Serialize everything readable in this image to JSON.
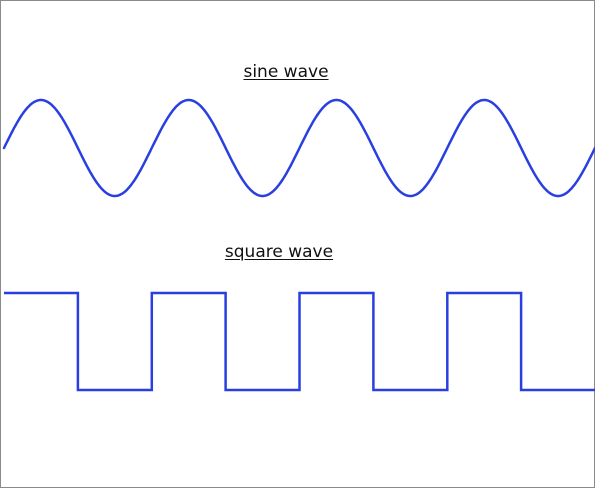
{
  "diagram": {
    "sine": {
      "label": "sine wave",
      "periods": 4
    },
    "square": {
      "label": "square wave",
      "periods": 4
    },
    "colors": {
      "wave": "#2a3fe0",
      "label": "#111111",
      "border": "#8a8a8a",
      "background": "#ffffff"
    }
  }
}
